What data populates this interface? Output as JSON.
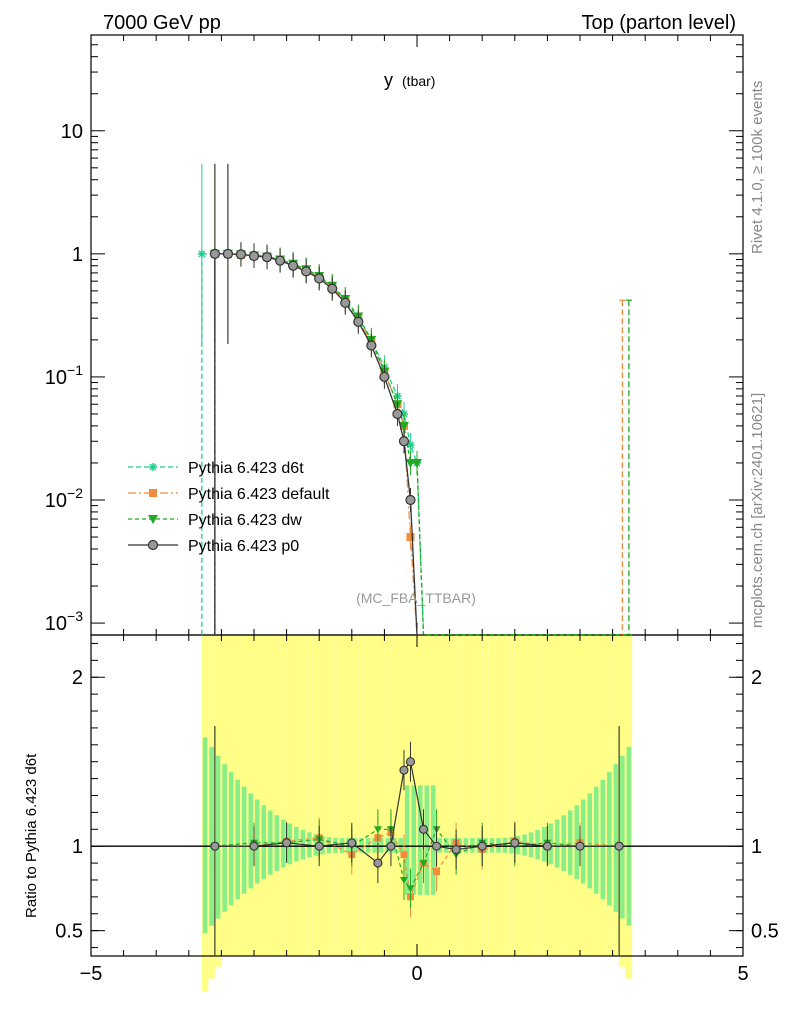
{
  "header": {
    "left_title": "7000 GeV pp",
    "right_title": "Top (parton level)"
  },
  "side_labels": {
    "rivet": "Rivet 4.1.0, ≥ 100k events",
    "mcplots": "mcplots.cern.ch [arXiv:2401.10621]"
  },
  "plot_title": {
    "main": "y",
    "sub": "(tbar)"
  },
  "analysis_label": "(MC_FBA_TTBAR)",
  "colors": {
    "d6t": "#1fcf8a",
    "default": "#f28c3c",
    "dw": "#22aa22",
    "p0": "#333333",
    "band_yellow": "#ffff88",
    "band_green": "#88ee88"
  },
  "chart_data": [
    {
      "type": "line",
      "panel": "main",
      "title": "y (tbar)",
      "xlabel": "",
      "ylabel": "",
      "yscale": "log",
      "xlim": [
        -5,
        5
      ],
      "ylim": [
        0.0008,
        60
      ],
      "ytick_labels": [
        "10",
        "1",
        "10^-1",
        "10^-2",
        "10^-3"
      ],
      "ytick_values": [
        10,
        1,
        0.1,
        0.01,
        0.001
      ],
      "legend_position": "lower-left",
      "x": [
        -3.3,
        -3.1,
        -2.9,
        -2.7,
        -2.5,
        -2.3,
        -2.1,
        -1.9,
        -1.7,
        -1.5,
        -1.3,
        -1.1,
        -0.9,
        -0.7,
        -0.5,
        -0.3,
        -0.2,
        -0.1,
        0.0,
        0.1,
        0.2
      ],
      "series": [
        {
          "key": "d6t",
          "name": "Pythia 6.423 d6t",
          "marker": "star",
          "dash": "5,3",
          "values": [
            1.0,
            1.0,
            1.0,
            1.0,
            0.98,
            0.95,
            0.9,
            0.82,
            0.74,
            0.65,
            0.54,
            0.42,
            0.3,
            0.2,
            0.12,
            0.07,
            0.05,
            0.028,
            0.02,
            0.0008,
            0.0008
          ]
        },
        {
          "key": "default",
          "name": "Pythia 6.423 default",
          "marker": "square",
          "dash": "8,3,2,3",
          "values": [
            null,
            1.0,
            1.0,
            0.98,
            0.97,
            0.94,
            0.89,
            0.81,
            0.73,
            0.64,
            0.53,
            0.41,
            0.29,
            0.19,
            0.11,
            0.06,
            0.04,
            0.005,
            0.0008,
            0.0008,
            0.0008
          ]
        },
        {
          "key": "dw",
          "name": "Pythia 6.423 dw",
          "marker": "triangle",
          "dash": "4,3",
          "values": [
            null,
            1.0,
            1.0,
            0.99,
            0.97,
            0.95,
            0.9,
            0.83,
            0.75,
            0.66,
            0.55,
            0.43,
            0.31,
            0.2,
            0.11,
            0.06,
            0.04,
            0.02,
            0.02,
            0.0008,
            0.0008
          ]
        },
        {
          "key": "p0",
          "name": "Pythia 6.423 p0",
          "marker": "circle",
          "dash": "",
          "values": [
            null,
            1.0,
            1.0,
            0.99,
            0.96,
            0.94,
            0.88,
            0.8,
            0.72,
            0.63,
            0.52,
            0.4,
            0.28,
            0.18,
            0.1,
            0.05,
            0.03,
            0.01,
            0.0008,
            0.0008,
            0.0008
          ]
        }
      ],
      "spikes": [
        {
          "key": "default",
          "x": 3.15,
          "value": 0.42
        },
        {
          "key": "dw",
          "x": 3.25,
          "value": 0.42
        }
      ]
    },
    {
      "type": "line",
      "panel": "ratio",
      "ylabel": "Ratio to Pythia 6.423 d6t",
      "xlim": [
        -5,
        5
      ],
      "ylim": [
        0.35,
        2.25
      ],
      "ytick_labels": [
        "2",
        "1",
        "0.5"
      ],
      "ytick_values": [
        2,
        1,
        0.5
      ],
      "xtick_labels": [
        "−5",
        "0",
        "5"
      ],
      "xtick_values": [
        -5,
        0,
        5
      ],
      "reference_line": 1,
      "x": [
        -3.1,
        -2.5,
        -2.0,
        -1.5,
        -1.0,
        -0.6,
        -0.4,
        -0.2,
        -0.1,
        0.1,
        0.3,
        0.6,
        1.0,
        1.5,
        2.0,
        2.5,
        3.1
      ],
      "series": [
        {
          "key": "default",
          "name": "Pythia 6.423 default",
          "values": [
            1.0,
            1.0,
            1.03,
            1.05,
            0.95,
            1.05,
            1.08,
            0.95,
            0.7,
            0.9,
            0.85,
            1.02,
            0.98,
            1.03,
            1.0,
            1.02,
            1.0
          ]
        },
        {
          "key": "dw",
          "name": "Pythia 6.423 dw",
          "values": [
            1.0,
            1.02,
            1.02,
            1.04,
            1.0,
            1.1,
            1.1,
            0.8,
            0.75,
            0.9,
            1.1,
            0.95,
            1.02,
            1.0,
            1.02,
            1.0,
            1.0
          ]
        },
        {
          "key": "p0",
          "name": "Pythia 6.423 p0",
          "values": [
            1.0,
            1.0,
            1.02,
            1.0,
            1.02,
            0.9,
            1.0,
            1.45,
            1.5,
            1.1,
            1.0,
            0.98,
            1.0,
            1.02,
            1.0,
            1.0,
            1.0
          ]
        }
      ]
    }
  ]
}
